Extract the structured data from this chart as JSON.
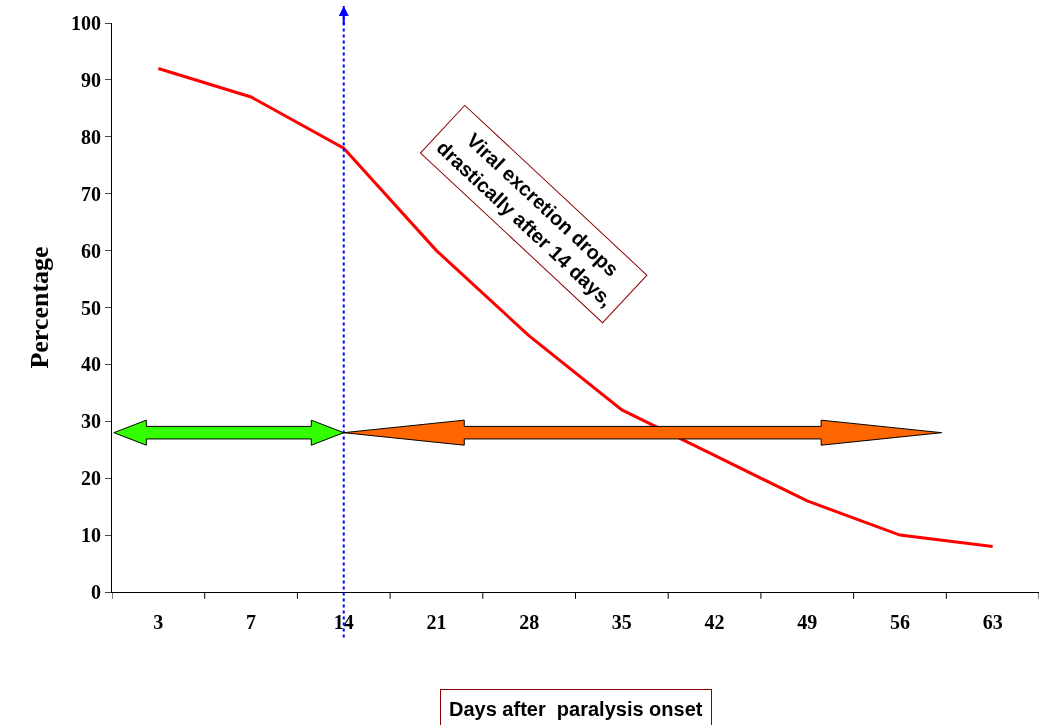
{
  "chart_data": {
    "type": "line",
    "categories": [
      "3",
      "7",
      "14",
      "21",
      "28",
      "35",
      "42",
      "49",
      "56",
      "63"
    ],
    "series": [
      {
        "color": "#ff0000",
        "values": [
          92,
          87,
          78,
          60,
          45,
          32,
          24,
          16,
          10,
          8
        ]
      }
    ],
    "ylim": [
      0,
      100
    ],
    "yticks": [
      0,
      10,
      20,
      30,
      40,
      50,
      60,
      70,
      80,
      90,
      100
    ],
    "xlabel": "Days after  paralysis onset",
    "ylabel": "Percentage",
    "annotations": [
      "Viral excretion drops drastically after 14 days,"
    ],
    "ref_lines": [
      {
        "axis": "x",
        "value": "14",
        "color": "#0000ff",
        "line_style": "dotted"
      }
    ],
    "marker": "none",
    "line_style": "solid"
  }
}
